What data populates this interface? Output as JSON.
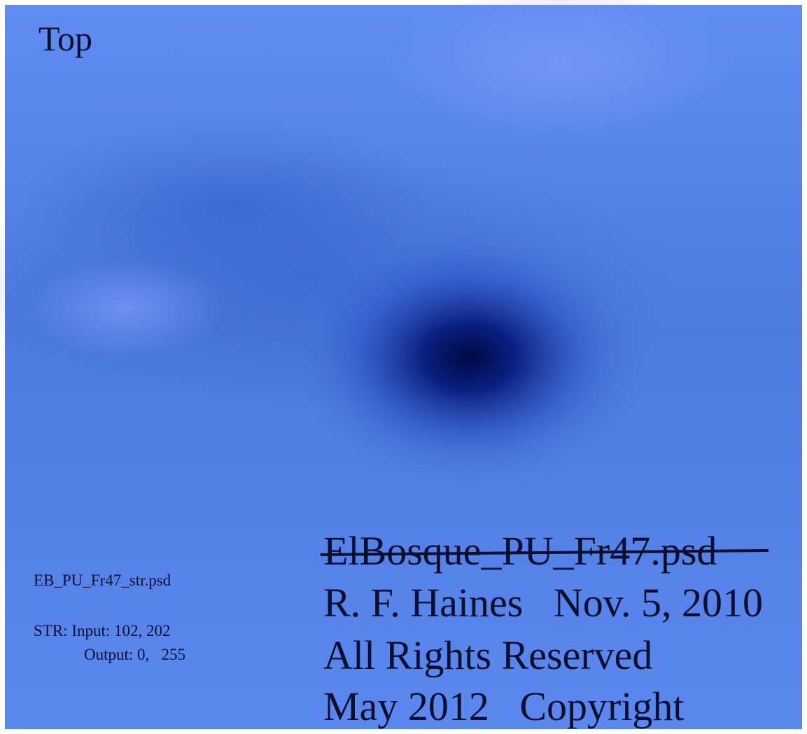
{
  "image": {
    "orientation": "Top",
    "small_file_name": "EB_PU_Fr47_str.psd",
    "stretch_input": "STR: Input: 102, 202",
    "stretch_output": "Output: 0,   255",
    "large_file_name": "ElBosque_PU_Fr47.psd",
    "author_date": "R. F. Haines   Nov. 5, 2010",
    "rights": "All Rights Reserved",
    "copyright": "May 2012   Copyright"
  }
}
